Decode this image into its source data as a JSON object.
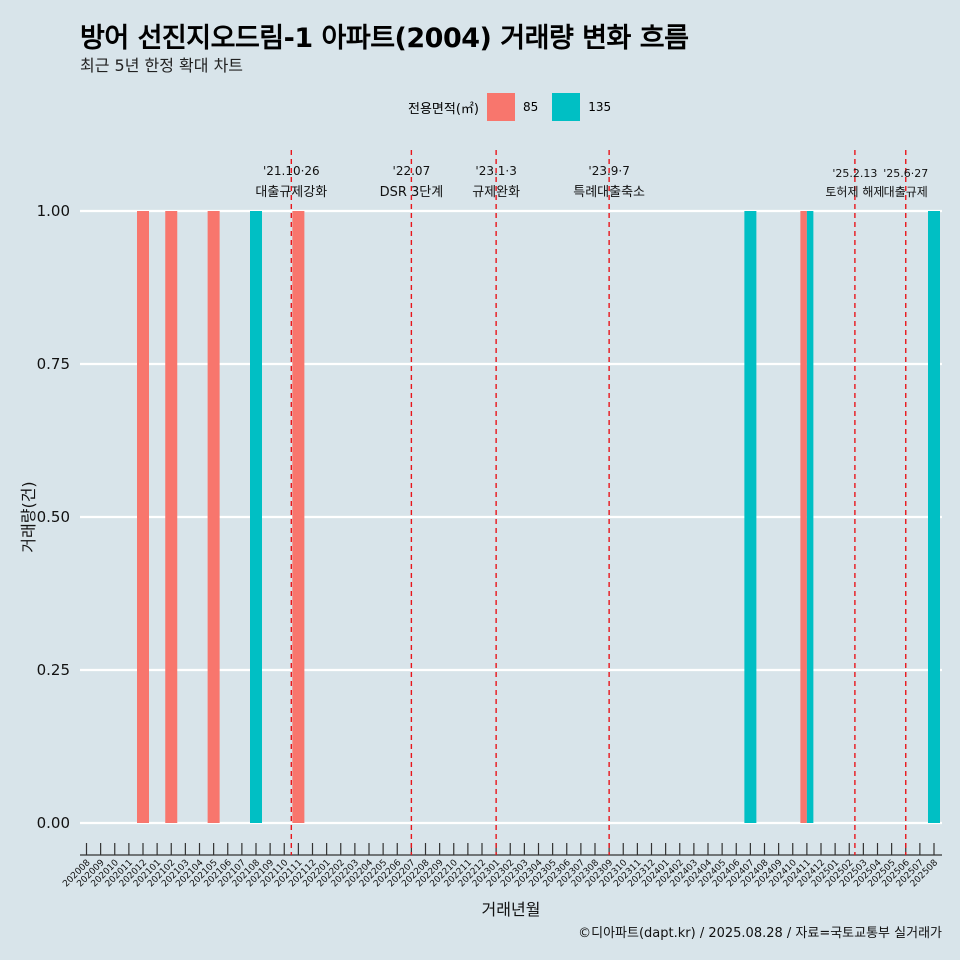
{
  "title": "방어 선진지오드림-1 아파트(2004) 거래량 변화 흐름",
  "subtitle": "최근 5년 한정 확대 차트",
  "caption": "©디아파트(dapt.kr) / 2025.08.28 / 자료=국토교통부 실거래가",
  "legend": {
    "title": "전용면적(㎡)",
    "items": [
      {
        "label": "85",
        "color": "#f8766d"
      },
      {
        "label": "135",
        "color": "#00bfc4"
      }
    ]
  },
  "chart_data": {
    "type": "bar",
    "xlabel": "거래년월",
    "ylabel": "거래량(건)",
    "ylim": [
      0,
      1
    ],
    "yticks": [
      "0.00",
      "0.25",
      "0.50",
      "0.75",
      "1.00"
    ],
    "grid": true,
    "categories": [
      "202008",
      "202009",
      "202010",
      "202011",
      "202012",
      "202101",
      "202102",
      "202103",
      "202104",
      "202105",
      "202106",
      "202107",
      "202108",
      "202109",
      "202110",
      "202111",
      "202112",
      "202201",
      "202202",
      "202203",
      "202204",
      "202205",
      "202206",
      "202207",
      "202208",
      "202209",
      "202210",
      "202211",
      "202212",
      "202301",
      "202302",
      "202303",
      "202304",
      "202305",
      "202306",
      "202307",
      "202308",
      "202309",
      "202310",
      "202311",
      "202312",
      "202401",
      "202402",
      "202403",
      "202404",
      "202405",
      "202406",
      "202407",
      "202408",
      "202409",
      "202410",
      "202411",
      "202412",
      "202501",
      "202502",
      "202503",
      "202504",
      "202505",
      "202506",
      "202507",
      "202508"
    ],
    "bars": [
      {
        "category": "202012",
        "series": "85",
        "value": 1
      },
      {
        "category": "202102",
        "series": "85",
        "value": 1
      },
      {
        "category": "202105",
        "series": "85",
        "value": 1
      },
      {
        "category": "202108",
        "series": "135",
        "value": 1
      },
      {
        "category": "202111",
        "series": "85",
        "value": 1
      },
      {
        "category": "202407",
        "series": "135",
        "value": 1
      },
      {
        "category": "202411",
        "series": "85",
        "value": 1
      },
      {
        "category": "202411",
        "series": "135",
        "value": 1
      },
      {
        "category": "202508",
        "series": "135",
        "value": 1
      }
    ],
    "events": [
      {
        "category": "202110",
        "date": "'21.10·26",
        "label": "대출규제강화",
        "offset": 0.5
      },
      {
        "category": "202207",
        "date": "'22.07",
        "label": "DSR 3단계",
        "offset": 0
      },
      {
        "category": "202301",
        "date": "'23.1·3",
        "label": "규제완화",
        "offset": 0
      },
      {
        "category": "202309",
        "date": "'23.9·7",
        "label": "특례대출축소",
        "offset": 0
      },
      {
        "category": "202502",
        "date": "'25.2.13",
        "label": "토허제 해제",
        "offset": 0.4
      },
      {
        "category": "202506",
        "date": "'25.6·27",
        "label": "대출규제",
        "offset": 0
      }
    ]
  }
}
